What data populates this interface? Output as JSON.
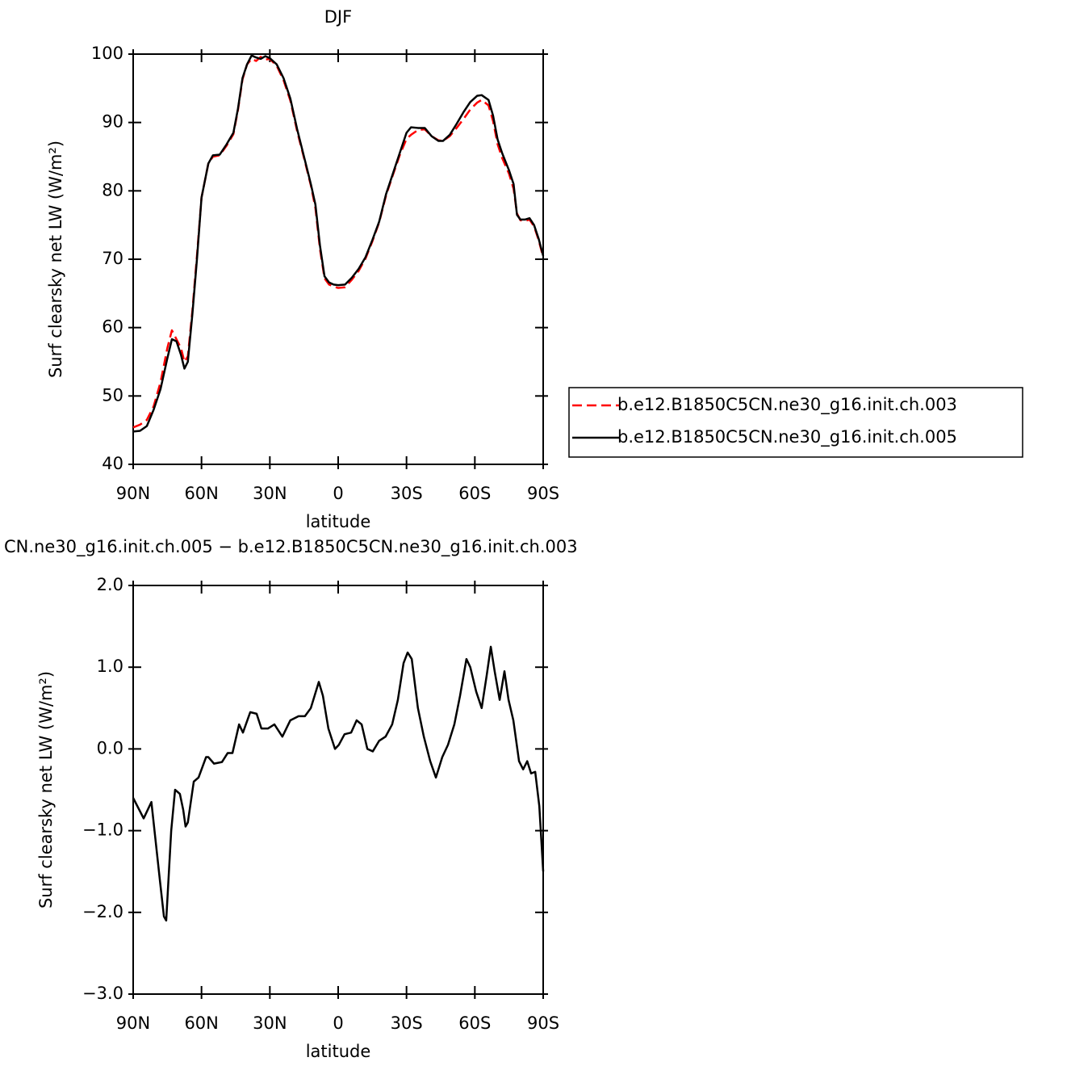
{
  "chart_data": [
    {
      "type": "line",
      "title": "DJF",
      "xlabel": "latitude",
      "ylabel": "Surf clearsky net LW (W/m²)",
      "x": [
        90,
        87,
        84,
        81,
        78,
        75,
        73,
        71,
        69,
        67.5,
        66,
        64,
        62,
        60,
        57,
        55,
        52,
        49,
        46,
        44,
        42,
        40,
        38,
        36,
        34,
        32,
        30,
        27,
        24,
        21,
        18,
        15,
        12,
        10,
        8,
        6,
        4,
        2,
        0,
        -3,
        -6,
        -9,
        -12,
        -15,
        -18,
        -21,
        -24,
        -27,
        -30,
        -32,
        -35,
        -38,
        -41,
        -44,
        -46,
        -49,
        -52,
        -55,
        -58,
        -61,
        -63,
        -66,
        -68,
        -70,
        -72,
        -75,
        -77,
        -78.5,
        -80,
        -82,
        -84,
        -86,
        -88,
        -90
      ],
      "series": [
        {
          "name": "b.e12.B1850C5CN.ne30_g16.init.ch.003",
          "color": "#ff0000",
          "style": "dashed",
          "values": [
            45.4,
            45.8,
            46.5,
            48.5,
            52,
            57,
            59.6,
            58.3,
            57,
            55,
            55.8,
            62.5,
            70.5,
            79,
            84,
            85,
            85.2,
            86.6,
            88.3,
            91.8,
            96.3,
            98.5,
            99.3,
            99,
            99.6,
            99.2,
            99.3,
            98.3,
            96.2,
            93.2,
            88.7,
            84.8,
            80.8,
            77.5,
            71.5,
            67.2,
            66.3,
            66,
            65.8,
            65.9,
            67,
            68.3,
            70.1,
            72.6,
            75.4,
            79.3,
            82.3,
            85.2,
            87.6,
            88.2,
            88.9,
            89,
            88,
            87.4,
            87.3,
            88,
            89.2,
            90.5,
            91.9,
            92.9,
            93.3,
            92.5,
            90.2,
            86.8,
            84.8,
            82.5,
            80.3,
            76.7,
            75.7,
            75.6,
            75.8,
            74.8,
            72.8,
            70.3
          ]
        },
        {
          "name": "b.e12.B1850C5CN.ne30_g16.init.ch.005",
          "color": "#000000",
          "style": "solid",
          "values": [
            44.8,
            44.9,
            45.6,
            48,
            51,
            55.5,
            58.3,
            58,
            56,
            54,
            55,
            62,
            70,
            79,
            84,
            85.2,
            85.3,
            86.8,
            88.5,
            92,
            96.5,
            98.5,
            99.8,
            99.5,
            99.3,
            99.7,
            99.4,
            98.5,
            96.5,
            93.5,
            89,
            85,
            81,
            78,
            72,
            67.5,
            66.6,
            66.3,
            66.2,
            66.3,
            67.3,
            68.6,
            70.3,
            72.8,
            75.5,
            79.5,
            82.5,
            85.5,
            88.5,
            89.3,
            89.2,
            89.2,
            88,
            87.3,
            87.3,
            88.2,
            89.8,
            91.5,
            93,
            93.9,
            94,
            93.3,
            91,
            87.5,
            85.5,
            83,
            81,
            76.5,
            75.8,
            75.8,
            76,
            75,
            73,
            70.5
          ]
        }
      ],
      "xlim": [
        90,
        -90
      ],
      "xticks": [
        {
          "value": 90,
          "label": "90N"
        },
        {
          "value": 60,
          "label": "60N"
        },
        {
          "value": 30,
          "label": "30N"
        },
        0,
        {
          "value": -30,
          "label": "30S"
        },
        {
          "value": -60,
          "label": "60S"
        },
        {
          "value": -90,
          "label": "90S"
        }
      ],
      "ylim": [
        40,
        100
      ],
      "yticks": [
        40,
        50,
        60,
        70,
        80,
        90,
        100
      ],
      "legend": "right"
    },
    {
      "type": "line",
      "title": "CN.ne30_g16.init.ch.005 − b.e12.B1850C5CN.ne30_g16.init.ch.003",
      "xlabel": "latitude",
      "ylabel": "Surf clearsky net LW (W/m²)",
      "x": [
        90,
        85.4,
        82,
        78.3,
        76.5,
        75.5,
        73.3,
        71.6,
        69.5,
        68,
        67,
        66,
        63.4,
        61.3,
        58,
        57,
        54.5,
        51,
        48.5,
        46.4,
        43.5,
        41.8,
        38.6,
        35.8,
        33.7,
        30.8,
        28,
        24.5,
        21,
        17.4,
        14.6,
        12,
        8.5,
        6.7,
        4.3,
        1.4,
        -0.3,
        -2.8,
        -5.7,
        -8.1,
        -10.3,
        -12.8,
        -15.2,
        -18,
        -20.8,
        -23.7,
        -26.2,
        -28.7,
        -30.5,
        -32.3,
        -35,
        -37.6,
        -40.4,
        -42.9,
        -45.7,
        -48.2,
        -51,
        -53.5,
        -56.3,
        -58,
        -60.6,
        -63,
        -65.2,
        -67,
        -68.7,
        -70.9,
        -73,
        -74.8,
        -76.9,
        -79.4,
        -81.2,
        -83,
        -84.7,
        -86.5,
        -88.3,
        -90
      ],
      "series": [
        {
          "color": "#000000",
          "style": "solid",
          "values": [
            -0.6,
            -0.85,
            -0.65,
            -1.6,
            -2.05,
            -2.1,
            -1.0,
            -0.5,
            -0.55,
            -0.75,
            -0.95,
            -0.9,
            -0.4,
            -0.35,
            -0.1,
            -0.1,
            -0.18,
            -0.16,
            -0.05,
            -0.05,
            0.3,
            0.2,
            0.45,
            0.43,
            0.25,
            0.25,
            0.3,
            0.15,
            0.35,
            0.4,
            0.4,
            0.5,
            0.82,
            0.65,
            0.25,
            0.0,
            0.05,
            0.18,
            0.2,
            0.35,
            0.3,
            0.0,
            -0.03,
            0.1,
            0.15,
            0.3,
            0.6,
            1.05,
            1.18,
            1.1,
            0.5,
            0.15,
            -0.15,
            -0.35,
            -0.1,
            0.05,
            0.3,
            0.65,
            1.1,
            1.0,
            0.7,
            0.5,
            0.9,
            1.25,
            0.95,
            0.6,
            0.95,
            0.6,
            0.35,
            -0.15,
            -0.25,
            -0.15,
            -0.3,
            -0.28,
            -0.7,
            -1.5
          ]
        }
      ],
      "xlim": [
        90,
        -90
      ],
      "xticks": [
        {
          "value": 90,
          "label": "90N"
        },
        {
          "value": 60,
          "label": "60N"
        },
        {
          "value": 30,
          "label": "30N"
        },
        0,
        {
          "value": -30,
          "label": "30S"
        },
        {
          "value": -60,
          "label": "60S"
        },
        {
          "value": -90,
          "label": "90S"
        }
      ],
      "ylim": [
        -3,
        2
      ],
      "yticks": [
        {
          "value": 2,
          "label": "2.0"
        },
        {
          "value": 1,
          "label": "1.0"
        },
        {
          "value": 0,
          "label": "0.0"
        },
        {
          "value": -1,
          "label": "−1.0"
        },
        {
          "value": -2,
          "label": "−2.0"
        },
        {
          "value": -3,
          "label": "−3.0"
        }
      ]
    }
  ]
}
